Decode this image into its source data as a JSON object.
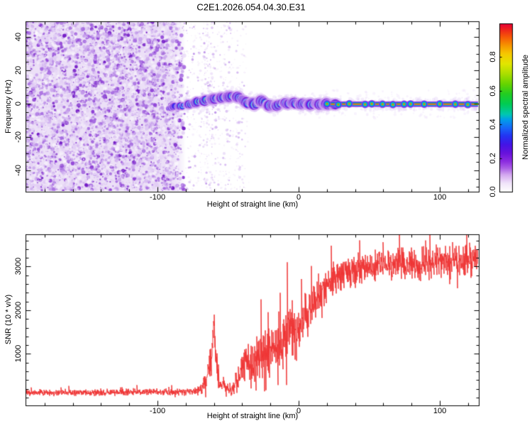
{
  "title": "C2E1.2026.054.04.30.E31",
  "colors": {
    "frame": "#000000",
    "background": "#ffffff",
    "snr_line": "#ee3333"
  },
  "chart_data": [
    {
      "type": "heatmap",
      "name": "spectrogram",
      "xlabel": "Height of straight line (km)",
      "ylabel": "Frequency (Hz)",
      "x_range": [
        -193.5,
        127.6
      ],
      "y_range": [
        -52.8,
        49.4
      ],
      "x_ticks": [
        {
          "label": "-100",
          "value": -100
        },
        {
          "label": "0",
          "value": 0
        },
        {
          "label": "100",
          "value": 100
        }
      ],
      "x_minor_step": 20,
      "y_ticks": [
        {
          "label": "40",
          "value": 40
        },
        {
          "label": "20",
          "value": 20
        },
        {
          "label": "0",
          "value": 0
        },
        {
          "label": "-20",
          "value": -20
        },
        {
          "label": "-40",
          "value": -40
        }
      ],
      "y_minor_step": 5,
      "colorbar": {
        "label": "Normalized spectral amplitude",
        "range": [
          0,
          1
        ],
        "ticks": [
          {
            "label": "0.0",
            "value": 0
          },
          {
            "label": "0.2",
            "value": 0.2
          },
          {
            "label": "0.4",
            "value": 0.4
          },
          {
            "label": "0.6",
            "value": 0.6
          },
          {
            "label": "0.8",
            "value": 0.8
          }
        ],
        "stops": [
          [
            0,
            "#ffffff"
          ],
          [
            0.05,
            "#f1e4fa"
          ],
          [
            0.1,
            "#d4a8f0"
          ],
          [
            0.14,
            "#ab5fe6"
          ],
          [
            0.18,
            "#8c2ce0"
          ],
          [
            0.23,
            "#6712dc"
          ],
          [
            0.28,
            "#4414e6"
          ],
          [
            0.33,
            "#2433f2"
          ],
          [
            0.38,
            "#1668f8"
          ],
          [
            0.43,
            "#00a0e8"
          ],
          [
            0.46,
            "#00c8b0"
          ],
          [
            0.52,
            "#00cc55"
          ],
          [
            0.58,
            "#22cc22"
          ],
          [
            0.64,
            "#66d400"
          ],
          [
            0.7,
            "#aade00"
          ],
          [
            0.76,
            "#e2e600"
          ],
          [
            0.82,
            "#f6c800"
          ],
          [
            0.87,
            "#f69400"
          ],
          [
            0.92,
            "#f65808"
          ],
          [
            0.97,
            "#ee1c20"
          ],
          [
            1.0,
            "#e4003a"
          ]
        ]
      },
      "noise": {
        "dense_region_km": [
          -193.5,
          -80
        ],
        "background_wash": "#ece0f7",
        "palette": [
          "#f0e6fa",
          "#e2cef5",
          "#c6a0ec",
          "#a468e0",
          "#8836d4",
          "#6f14c4"
        ],
        "streaks": [
          [
            -78,
            0.3
          ],
          [
            -74,
            0.18
          ],
          [
            -70,
            0.22
          ],
          [
            -66,
            0.45
          ],
          [
            -63,
            0.5
          ],
          [
            -60,
            0.35
          ],
          [
            -56,
            0.22
          ],
          [
            -52,
            0.25
          ],
          [
            -49,
            0.28
          ],
          [
            -43,
            0.38
          ],
          [
            -39,
            0.15
          ]
        ]
      },
      "trace": {
        "palette": {
          "fuzz": "#dcc4f4",
          "halo": "#cfa8f0",
          "purple": "#7d1fd8",
          "blue": "#2e2ef2",
          "cyan": "#00c2f0",
          "green": "#00d84c",
          "yellow": "#f2ec00",
          "red": "#ee2030"
        },
        "points_km_hz": [
          [
            -93,
            -2.4
          ],
          [
            -89,
            -2.0
          ],
          [
            -85,
            -1.6
          ],
          [
            -81,
            -1.1
          ],
          [
            -77,
            -0.3
          ],
          [
            -73,
            0.6
          ],
          [
            -69,
            1.4
          ],
          [
            -65,
            2.3
          ],
          [
            -61,
            2.7
          ],
          [
            -57,
            3.1
          ],
          [
            -53,
            3.6
          ],
          [
            -50,
            4.0
          ],
          [
            -47,
            4.4
          ],
          [
            -44,
            4.0
          ],
          [
            -40,
            2.7
          ],
          [
            -37,
            0.2
          ],
          [
            -34,
            1.4
          ],
          [
            -31,
            -0.7
          ],
          [
            -28,
            1.9
          ],
          [
            -25,
            1.0
          ],
          [
            -22,
            -1.5
          ],
          [
            -19,
            -0.7
          ],
          [
            -16,
            -2.0
          ],
          [
            -13,
            0.3
          ],
          [
            -10,
            0.6
          ],
          [
            -7,
            -0.3
          ],
          [
            -4,
            0.2
          ],
          [
            -1,
            -0.3
          ],
          [
            3,
            -0.3
          ],
          [
            127.6,
            -0.3
          ]
        ],
        "intensity_ramp": [
          [
            -93,
            0.3
          ],
          [
            -83,
            0.45
          ],
          [
            -75,
            0.6
          ],
          [
            -65,
            0.78
          ],
          [
            -58,
            0.92
          ],
          [
            -52,
            1.0
          ],
          [
            128,
            1.0
          ]
        ],
        "flat_from_km": 3,
        "flat_value_hz": -0.3
      }
    },
    {
      "type": "line",
      "name": "snr",
      "xlabel": "Height of straight line (km)",
      "ylabel": "SNR (10 * v/v)",
      "line_color": "#ee3333",
      "x_range": [
        -193.5,
        127.6
      ],
      "y_range": [
        -180,
        3740
      ],
      "x_ticks": [
        {
          "label": "-100",
          "value": -100
        },
        {
          "label": "0",
          "value": 0
        },
        {
          "label": "100",
          "value": 100
        }
      ],
      "x_minor_step": 20,
      "y_ticks": [
        {
          "label": "1000",
          "value": 1000
        },
        {
          "label": "2000",
          "value": 2000
        },
        {
          "label": "3000",
          "value": 3000
        }
      ],
      "y_minor_step": 200,
      "envelope_km_mean_spread": [
        [
          -193,
          115,
          85
        ],
        [
          -150,
          120,
          90
        ],
        [
          -110,
          125,
          92
        ],
        [
          -85,
          130,
          95
        ],
        [
          -72,
          145,
          105
        ],
        [
          -66,
          300,
          250
        ],
        [
          -62,
          750,
          500
        ],
        [
          -60,
          1750,
          300
        ],
        [
          -58.5,
          850,
          500
        ],
        [
          -56,
          350,
          280
        ],
        [
          -51,
          220,
          180
        ],
        [
          -47,
          200,
          170
        ],
        [
          -44,
          350,
          300
        ],
        [
          -40,
          750,
          550
        ],
        [
          -36,
          850,
          600
        ],
        [
          -32,
          650,
          500
        ],
        [
          -29,
          950,
          600
        ],
        [
          -26,
          1050,
          650
        ],
        [
          -22,
          950,
          700
        ],
        [
          -18,
          1150,
          750
        ],
        [
          -14,
          1250,
          800
        ],
        [
          -10,
          1380,
          850
        ],
        [
          -6,
          1500,
          800
        ],
        [
          -2,
          1520,
          750
        ],
        [
          2,
          1700,
          700
        ],
        [
          6,
          1900,
          650
        ],
        [
          10,
          2120,
          600
        ],
        [
          14,
          2320,
          550
        ],
        [
          18,
          2500,
          500
        ],
        [
          22,
          2650,
          480
        ],
        [
          26,
          2750,
          460
        ],
        [
          30,
          2830,
          450
        ],
        [
          36,
          2900,
          440
        ],
        [
          45,
          2940,
          430
        ],
        [
          55,
          2980,
          430
        ],
        [
          65,
          3010,
          430
        ],
        [
          80,
          3050,
          430
        ],
        [
          95,
          3090,
          440
        ],
        [
          110,
          3130,
          450
        ],
        [
          127,
          3170,
          470
        ]
      ],
      "spikes_km_value": [
        [
          -60,
          1900
        ],
        [
          -63,
          1100
        ],
        [
          -13,
          2400
        ],
        [
          -8,
          3100
        ],
        [
          23,
          3480
        ],
        [
          60,
          3560
        ],
        [
          90,
          3600
        ],
        [
          119,
          3740
        ]
      ]
    }
  ]
}
